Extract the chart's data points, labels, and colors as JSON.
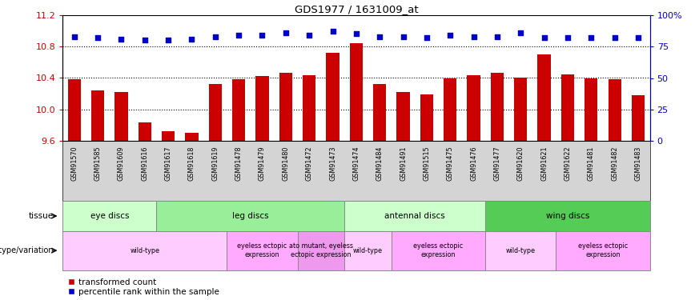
{
  "title": "GDS1977 / 1631009_at",
  "samples": [
    "GSM91570",
    "GSM91585",
    "GSM91609",
    "GSM91616",
    "GSM91617",
    "GSM91618",
    "GSM91619",
    "GSM91478",
    "GSM91479",
    "GSM91480",
    "GSM91472",
    "GSM91473",
    "GSM91474",
    "GSM91484",
    "GSM91491",
    "GSM91515",
    "GSM91475",
    "GSM91476",
    "GSM91477",
    "GSM91620",
    "GSM91621",
    "GSM91622",
    "GSM91481",
    "GSM91482",
    "GSM91483"
  ],
  "bar_values": [
    10.38,
    10.24,
    10.22,
    9.84,
    9.72,
    9.7,
    10.32,
    10.38,
    10.43,
    10.47,
    10.44,
    10.72,
    10.84,
    10.32,
    10.22,
    10.19,
    10.39,
    10.44,
    10.47,
    10.41,
    10.7,
    10.45,
    10.39,
    10.38,
    10.18
  ],
  "percentile_values": [
    83,
    82,
    81,
    80,
    80,
    81,
    83,
    84,
    84,
    86,
    84,
    87,
    85,
    83,
    83,
    82,
    84,
    83,
    83,
    86,
    82,
    82,
    82,
    82,
    82
  ],
  "ylim_left": [
    9.6,
    11.2
  ],
  "ylim_right": [
    0,
    100
  ],
  "yticks_left": [
    9.6,
    10.0,
    10.4,
    10.8,
    11.2
  ],
  "yticks_right": [
    0,
    25,
    50,
    75,
    100
  ],
  "ytick_labels_right": [
    "0",
    "25",
    "50",
    "75",
    "100%"
  ],
  "bar_color": "#cc0000",
  "dot_color": "#0000cc",
  "xticklabel_bg": "#d4d4d4",
  "tissue_groups": [
    {
      "label": "eye discs",
      "start": 0,
      "end": 4,
      "color": "#ccffcc"
    },
    {
      "label": "leg discs",
      "start": 4,
      "end": 12,
      "color": "#99ee99"
    },
    {
      "label": "antennal discs",
      "start": 12,
      "end": 18,
      "color": "#ccffcc"
    },
    {
      "label": "wing discs",
      "start": 18,
      "end": 25,
      "color": "#55cc55"
    }
  ],
  "genotype_groups": [
    {
      "label": "wild-type",
      "start": 0,
      "end": 7,
      "color": "#ffccff"
    },
    {
      "label": "eyeless ectopic\nexpression",
      "start": 7,
      "end": 10,
      "color": "#ffaaff"
    },
    {
      "label": "ato mutant, eyeless\nectopic expression",
      "start": 10,
      "end": 12,
      "color": "#ee99ee"
    },
    {
      "label": "wild-type",
      "start": 12,
      "end": 14,
      "color": "#ffccff"
    },
    {
      "label": "eyeless ectopic\nexpression",
      "start": 14,
      "end": 18,
      "color": "#ffaaff"
    },
    {
      "label": "wild-type",
      "start": 18,
      "end": 21,
      "color": "#ffccff"
    },
    {
      "label": "eyeless ectopic\nexpression",
      "start": 21,
      "end": 25,
      "color": "#ffaaff"
    }
  ],
  "legend_labels": [
    "transformed count",
    "percentile rank within the sample"
  ]
}
